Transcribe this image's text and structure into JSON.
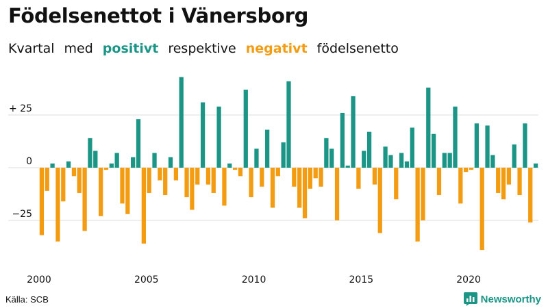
{
  "header": {
    "title": "Födelsenettot i Vänersborg",
    "subtitle_parts": [
      "Kvartal",
      "med",
      "positivt",
      "respektive",
      "negativt",
      "födelsenetto"
    ]
  },
  "colors": {
    "positive": "#1a9586",
    "negative": "#f39c12",
    "grid": "#dddddd"
  },
  "footer": {
    "source": "Källa: SCB",
    "brand": "Newsworthy"
  },
  "chart_data": {
    "type": "bar",
    "title": "Födelsenettot i Vänersborg",
    "xlabel": "",
    "ylabel": "",
    "x_start_year": 2000,
    "x_tick_labels": [
      "2000",
      "2005",
      "2010",
      "2015",
      "2020"
    ],
    "x_tick_years": [
      2000,
      2005,
      2010,
      2015,
      2020
    ],
    "y_tick_labels": [
      "+ 25",
      "0",
      "−25"
    ],
    "y_tick_values": [
      25,
      0,
      -25
    ],
    "ylim": [
      -40,
      44
    ],
    "values": [
      -32,
      -11,
      2,
      -35,
      -16,
      3,
      -4,
      -12,
      -30,
      14,
      8,
      -23,
      -1,
      2,
      7,
      -17,
      -22,
      5,
      23,
      -36,
      -12,
      7,
      -6,
      -13,
      5,
      -6,
      43,
      -14,
      -20,
      -8,
      31,
      -8,
      -12,
      29,
      -18,
      2,
      -1,
      -4,
      37,
      -14,
      9,
      -9,
      18,
      -19,
      -4,
      12,
      41,
      -9,
      -19,
      -24,
      -10,
      -5,
      -9,
      14,
      9,
      -25,
      26,
      1,
      34,
      -10,
      8,
      17,
      -8,
      -31,
      10,
      6,
      -15,
      7,
      3,
      19,
      -35,
      -25,
      38,
      16,
      -13,
      7,
      7,
      29,
      -17,
      -2,
      -1,
      21,
      -39,
      20,
      6,
      -12,
      -15,
      -8,
      11,
      -13,
      21,
      -26,
      2
    ]
  }
}
